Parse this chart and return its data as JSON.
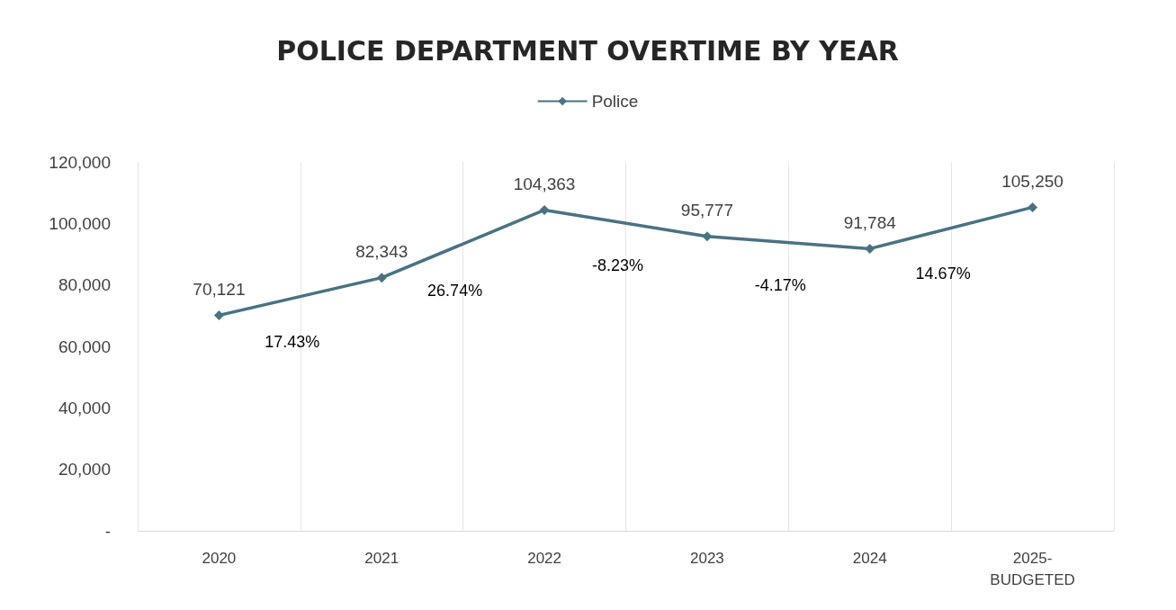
{
  "chart_data": {
    "type": "line",
    "title": "POLICE DEPARTMENT OVERTIME BY YEAR",
    "categories": [
      "2020",
      "2021",
      "2022",
      "2023",
      "2024",
      "2025-BUDGETED"
    ],
    "series": [
      {
        "name": "Police",
        "color": "#4a7282",
        "values": [
          70121,
          82343,
          104363,
          95777,
          91784,
          105250
        ],
        "value_labels": [
          "70,121",
          "82,343",
          "104,363",
          "95,777",
          "91,784",
          "105,250"
        ]
      }
    ],
    "ylim": [
      0,
      120000
    ],
    "yticks": [
      {
        "value": 0,
        "label": "-"
      },
      {
        "value": 20000,
        "label": "20,000"
      },
      {
        "value": 40000,
        "label": "40,000"
      },
      {
        "value": 60000,
        "label": "60,000"
      },
      {
        "value": 80000,
        "label": "80,000"
      },
      {
        "value": 100000,
        "label": "100,000"
      },
      {
        "value": 120000,
        "label": "120,000"
      }
    ],
    "grid": "x",
    "legend": "top",
    "marker": "diamond",
    "annotations": [
      "17.43%",
      "26.74%",
      "-8.23%",
      "-4.17%",
      "14.67%"
    ]
  }
}
